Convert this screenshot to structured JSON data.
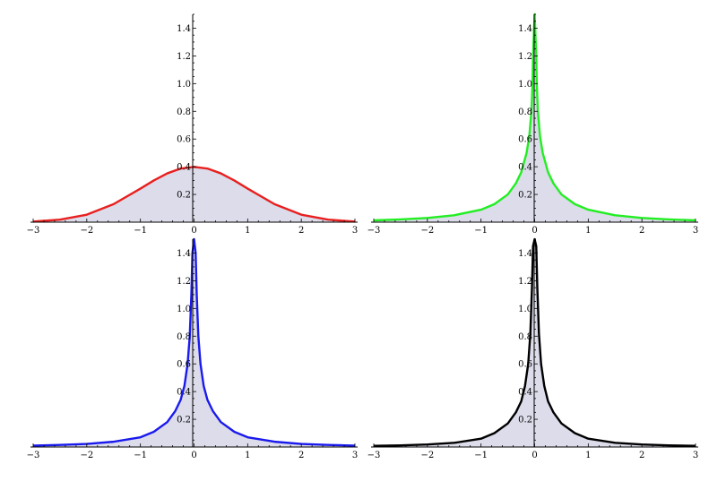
{
  "chart_data": [
    {
      "type": "area",
      "title": "",
      "xlabel": "",
      "ylabel": "",
      "xlim": [
        -3,
        3
      ],
      "ylim": [
        0,
        1.5
      ],
      "xticks": [
        "−3",
        "−2",
        "−1",
        "0",
        "1",
        "2",
        "3"
      ],
      "xtick_values": [
        -3,
        -2,
        -1,
        0,
        1,
        2,
        3
      ],
      "yticks": [
        "0.2",
        "0.4",
        "0.6",
        "0.8",
        "1.0",
        "1.2",
        "1.4"
      ],
      "ytick_values": [
        0.2,
        0.4,
        0.6,
        0.8,
        1.0,
        1.2,
        1.4
      ],
      "fill_color": "#dcdcea",
      "series": [
        {
          "color": "#e8201f",
          "x": [
            -3,
            -2.5,
            -2,
            -1.5,
            -1,
            -0.75,
            -0.5,
            -0.25,
            0,
            0.25,
            0.5,
            0.75,
            1,
            1.5,
            2,
            2.5,
            3
          ],
          "y": [
            0.004,
            0.018,
            0.054,
            0.13,
            0.242,
            0.301,
            0.352,
            0.387,
            0.399,
            0.387,
            0.352,
            0.301,
            0.242,
            0.13,
            0.054,
            0.018,
            0.004
          ]
        }
      ]
    },
    {
      "type": "area",
      "title": "",
      "xlabel": "",
      "ylabel": "",
      "xlim": [
        -3,
        3
      ],
      "ylim": [
        0,
        1.5
      ],
      "xticks": [
        "−3",
        "−2",
        "−1",
        "0",
        "1",
        "2",
        "3"
      ],
      "xtick_values": [
        -3,
        -2,
        -1,
        0,
        1,
        2,
        3
      ],
      "yticks": [
        "0.2",
        "0.4",
        "0.6",
        "0.8",
        "1.0",
        "1.2",
        "1.4"
      ],
      "ytick_values": [
        0.2,
        0.4,
        0.6,
        0.8,
        1.0,
        1.2,
        1.4
      ],
      "fill_color": "#dcdcea",
      "series": [
        {
          "color": "#22ee22",
          "x": [
            -3,
            -2.5,
            -2,
            -1.5,
            -1,
            -0.75,
            -0.5,
            -0.35,
            -0.25,
            -0.15,
            -0.1,
            -0.06,
            -0.04,
            -0.03,
            0,
            0.03,
            0.04,
            0.06,
            0.1,
            0.15,
            0.25,
            0.35,
            0.5,
            0.75,
            1,
            1.5,
            2,
            2.5,
            3
          ],
          "y": [
            0.013,
            0.02,
            0.03,
            0.05,
            0.09,
            0.13,
            0.2,
            0.28,
            0.36,
            0.5,
            0.62,
            0.8,
            1.0,
            1.2,
            1.5,
            1.2,
            1.0,
            0.8,
            0.62,
            0.5,
            0.36,
            0.28,
            0.2,
            0.13,
            0.09,
            0.05,
            0.03,
            0.02,
            0.013
          ]
        }
      ]
    },
    {
      "type": "area",
      "title": "",
      "xlabel": "",
      "ylabel": "",
      "xlim": [
        -3,
        3
      ],
      "ylim": [
        0,
        1.5
      ],
      "xticks": [
        "−3",
        "−2",
        "−1",
        "0",
        "1",
        "2",
        "3"
      ],
      "xtick_values": [
        -3,
        -2,
        -1,
        0,
        1,
        2,
        3
      ],
      "yticks": [
        "0.2",
        "0.4",
        "0.6",
        "0.8",
        "1.0",
        "1.2",
        "1.4"
      ],
      "ytick_values": [
        0.2,
        0.4,
        0.6,
        0.8,
        1.0,
        1.2,
        1.4
      ],
      "fill_color": "#dcdcea",
      "series": [
        {
          "color": "#1a1aee",
          "x": [
            -3,
            -2.5,
            -2,
            -1.5,
            -1,
            -0.75,
            -0.5,
            -0.35,
            -0.25,
            -0.18,
            -0.12,
            -0.08,
            -0.05,
            -0.03,
            0,
            0.03,
            0.05,
            0.08,
            0.12,
            0.18,
            0.25,
            0.35,
            0.5,
            0.75,
            1,
            1.5,
            2,
            2.5,
            3
          ],
          "y": [
            0.01,
            0.015,
            0.022,
            0.038,
            0.07,
            0.11,
            0.18,
            0.26,
            0.34,
            0.44,
            0.6,
            0.8,
            1.1,
            1.4,
            1.5,
            1.4,
            1.1,
            0.8,
            0.6,
            0.44,
            0.34,
            0.26,
            0.18,
            0.11,
            0.07,
            0.038,
            0.022,
            0.015,
            0.01
          ]
        }
      ]
    },
    {
      "type": "area",
      "title": "",
      "xlabel": "",
      "ylabel": "",
      "xlim": [
        -3,
        3
      ],
      "ylim": [
        0,
        1.5
      ],
      "xticks": [
        "−3",
        "−2",
        "−1",
        "0",
        "1",
        "2",
        "3"
      ],
      "xtick_values": [
        -3,
        -2,
        -1,
        0,
        1,
        2,
        3
      ],
      "yticks": [
        "0.2",
        "0.4",
        "0.6",
        "0.8",
        "1.0",
        "1.2",
        "1.4"
      ],
      "ytick_values": [
        0.2,
        0.4,
        0.6,
        0.8,
        1.0,
        1.2,
        1.4
      ],
      "fill_color": "#dcdcea",
      "series": [
        {
          "color": "#000000",
          "x": [
            -3,
            -2.5,
            -2,
            -1.5,
            -1,
            -0.75,
            -0.5,
            -0.35,
            -0.25,
            -0.18,
            -0.12,
            -0.08,
            -0.05,
            -0.03,
            0,
            0.03,
            0.05,
            0.08,
            0.12,
            0.18,
            0.25,
            0.35,
            0.5,
            0.75,
            1,
            1.5,
            2,
            2.5,
            3
          ],
          "y": [
            0.008,
            0.012,
            0.018,
            0.03,
            0.06,
            0.1,
            0.17,
            0.25,
            0.33,
            0.44,
            0.6,
            0.82,
            1.15,
            1.45,
            1.5,
            1.45,
            1.15,
            0.82,
            0.6,
            0.44,
            0.33,
            0.25,
            0.17,
            0.1,
            0.06,
            0.03,
            0.018,
            0.012,
            0.008
          ]
        }
      ]
    }
  ]
}
